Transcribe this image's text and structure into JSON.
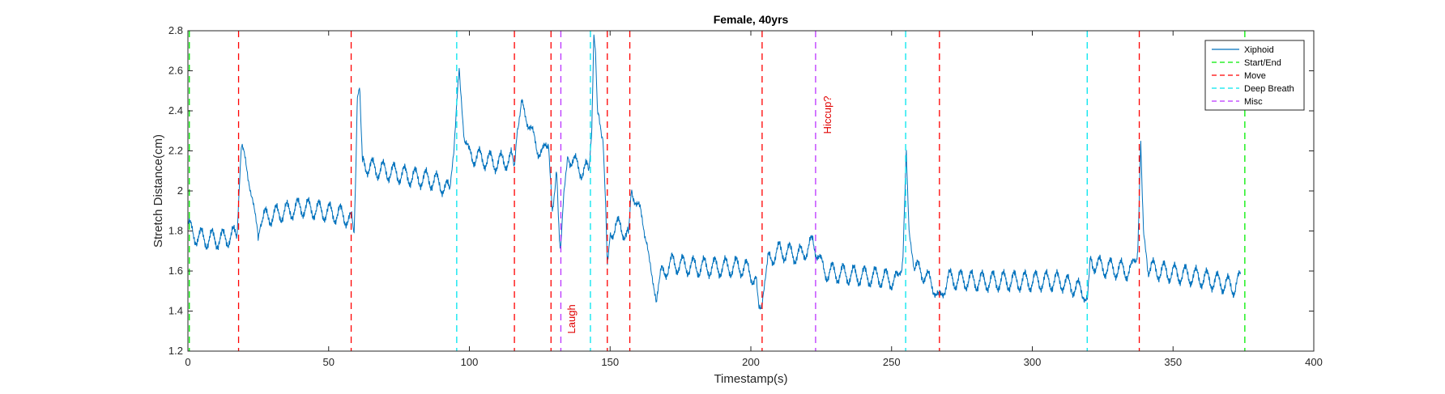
{
  "chart_data": {
    "type": "line",
    "title": "Female, 40yrs",
    "xlabel": "Timestamp(s)",
    "ylabel": "Stretch Distance(cm)",
    "xlim": [
      0,
      400
    ],
    "ylim": [
      1.2,
      2.8
    ],
    "xticks": [
      0,
      50,
      100,
      150,
      200,
      250,
      300,
      350,
      400
    ],
    "yticks": [
      1.2,
      1.4,
      1.6,
      1.8,
      2,
      2.2,
      2.4,
      2.6,
      2.8
    ],
    "grid": false,
    "legend_position": "top-right",
    "series": [
      {
        "name": "Xiphoid",
        "color": "#0072bd",
        "keypoints": [
          [
            0,
            1.84
          ],
          [
            2,
            1.78
          ],
          [
            6,
            1.76
          ],
          [
            12,
            1.76
          ],
          [
            17.5,
            1.78
          ],
          [
            18.2,
            2.0
          ],
          [
            19,
            2.23
          ],
          [
            20.5,
            2.14
          ],
          [
            23,
            1.95
          ],
          [
            25,
            1.78
          ],
          [
            26,
            1.86
          ],
          [
            40,
            1.92
          ],
          [
            55,
            1.88
          ],
          [
            58.5,
            1.84
          ],
          [
            59,
            1.78
          ],
          [
            59.5,
            2.0
          ],
          [
            60.2,
            2.47
          ],
          [
            61,
            2.52
          ],
          [
            62,
            2.15
          ],
          [
            64,
            2.12
          ],
          [
            70,
            2.1
          ],
          [
            80,
            2.07
          ],
          [
            88,
            2.05
          ],
          [
            93,
            2.0
          ],
          [
            94.5,
            2.2
          ],
          [
            96,
            2.55
          ],
          [
            96.5,
            2.58
          ],
          [
            98,
            2.28
          ],
          [
            100,
            2.18
          ],
          [
            105,
            2.16
          ],
          [
            110,
            2.14
          ],
          [
            115,
            2.16
          ],
          [
            116,
            2.12
          ],
          [
            117,
            2.3
          ],
          [
            118.5,
            2.42
          ],
          [
            120,
            2.38
          ],
          [
            122,
            2.3
          ],
          [
            124,
            2.22
          ],
          [
            126,
            2.18
          ],
          [
            128,
            2.25
          ],
          [
            129,
            2.02
          ],
          [
            129.5,
            1.88
          ],
          [
            130,
            1.95
          ],
          [
            131,
            2.1
          ],
          [
            132,
            1.75
          ],
          [
            132.5,
            1.73
          ],
          [
            133.5,
            1.98
          ],
          [
            135,
            2.18
          ],
          [
            138,
            2.13
          ],
          [
            140,
            2.1
          ],
          [
            142.5,
            2.1
          ],
          [
            143.5,
            2.3
          ],
          [
            144.2,
            2.78
          ],
          [
            144.8,
            2.7
          ],
          [
            145.5,
            2.4
          ],
          [
            146.5,
            2.33
          ],
          [
            147.5,
            2.25
          ],
          [
            148.5,
            1.9
          ],
          [
            149,
            1.62
          ],
          [
            150,
            1.78
          ],
          [
            152,
            1.83
          ],
          [
            155,
            1.8
          ],
          [
            156.5,
            1.78
          ],
          [
            157.5,
            2.0
          ],
          [
            158.5,
            1.98
          ],
          [
            161,
            1.88
          ],
          [
            163,
            1.75
          ],
          [
            165,
            1.55
          ],
          [
            166.5,
            1.48
          ],
          [
            168,
            1.58
          ],
          [
            172,
            1.64
          ],
          [
            180,
            1.62
          ],
          [
            190,
            1.62
          ],
          [
            198,
            1.62
          ],
          [
            202,
            1.55
          ],
          [
            203,
            1.4
          ],
          [
            204,
            1.45
          ],
          [
            206,
            1.65
          ],
          [
            210,
            1.7
          ],
          [
            218,
            1.68
          ],
          [
            222,
            1.74
          ],
          [
            224,
            1.68
          ],
          [
            226,
            1.6
          ],
          [
            235,
            1.58
          ],
          [
            245,
            1.57
          ],
          [
            252,
            1.55
          ],
          [
            254,
            1.65
          ],
          [
            255.2,
            2.2
          ],
          [
            256.2,
            1.8
          ],
          [
            258,
            1.62
          ],
          [
            262,
            1.58
          ],
          [
            265,
            1.52
          ],
          [
            267,
            1.45
          ],
          [
            270,
            1.56
          ],
          [
            280,
            1.55
          ],
          [
            290,
            1.55
          ],
          [
            300,
            1.55
          ],
          [
            310,
            1.55
          ],
          [
            318,
            1.5
          ],
          [
            319.5,
            1.45
          ],
          [
            320.5,
            1.65
          ],
          [
            325,
            1.62
          ],
          [
            335,
            1.6
          ],
          [
            337.5,
            1.7
          ],
          [
            338.5,
            2.24
          ],
          [
            339.5,
            1.8
          ],
          [
            341,
            1.62
          ],
          [
            345,
            1.6
          ],
          [
            355,
            1.58
          ],
          [
            365,
            1.55
          ],
          [
            372,
            1.52
          ],
          [
            374,
            1.57
          ]
        ]
      },
      {
        "name": "Start/End",
        "color": "#00ee00",
        "x": [
          0.5,
          375.5
        ]
      },
      {
        "name": "Move",
        "color": "#ff0000",
        "x": [
          18,
          58,
          116,
          129,
          149,
          157,
          204,
          267,
          338
        ]
      },
      {
        "name": "Deep Breath",
        "color": "#00e5ee",
        "x": [
          95.5,
          143,
          255,
          319.5
        ]
      },
      {
        "name": "Misc",
        "color": "#bb33ff",
        "x": [
          132.5,
          223
        ]
      }
    ],
    "annotations": [
      {
        "text": "Laugh",
        "x": 137.5,
        "y": 1.36,
        "color": "#e00000"
      },
      {
        "text": "Hiccup?",
        "x": 228.5,
        "y": 2.38,
        "color": "#e00000"
      }
    ]
  }
}
